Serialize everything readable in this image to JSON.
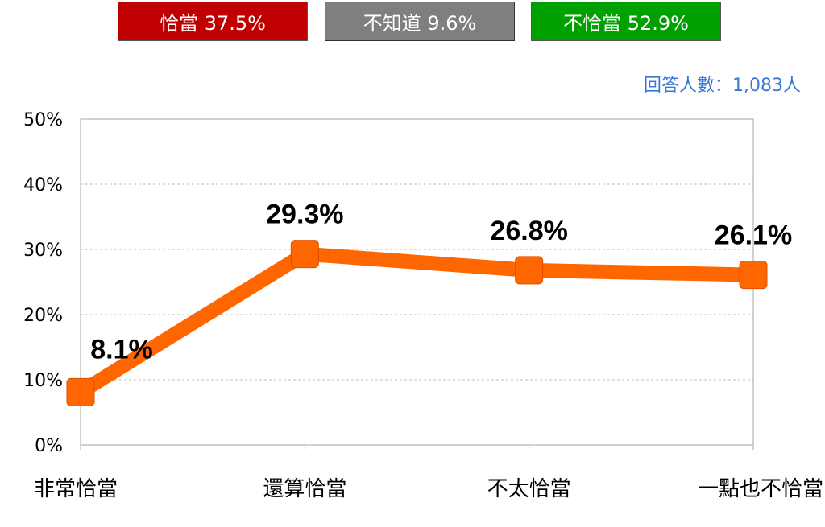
{
  "summary": [
    {
      "label": "恰當 37.5%",
      "color": "#c00000"
    },
    {
      "label": "不知道 9.6%",
      "color": "#7f7f7f"
    },
    {
      "label": "不恰當 52.9%",
      "color": "#00a000"
    }
  ],
  "respondents": "回答人數：1,083人",
  "chart_data": {
    "type": "line",
    "categories": [
      "非常恰當",
      "還算恰當",
      "不太恰當",
      "一點也不恰當"
    ],
    "series": [
      {
        "values": [
          8.1,
          29.3,
          26.8,
          26.1
        ],
        "color": "#ff6600"
      }
    ],
    "data_labels": [
      "8.1%",
      "29.3%",
      "26.8%",
      "26.1%"
    ],
    "y_ticks": [
      "0%",
      "10%",
      "20%",
      "30%",
      "40%",
      "50%"
    ],
    "ylim": [
      0,
      50
    ],
    "grid": true,
    "title": "",
    "xlabel": "",
    "ylabel": ""
  }
}
